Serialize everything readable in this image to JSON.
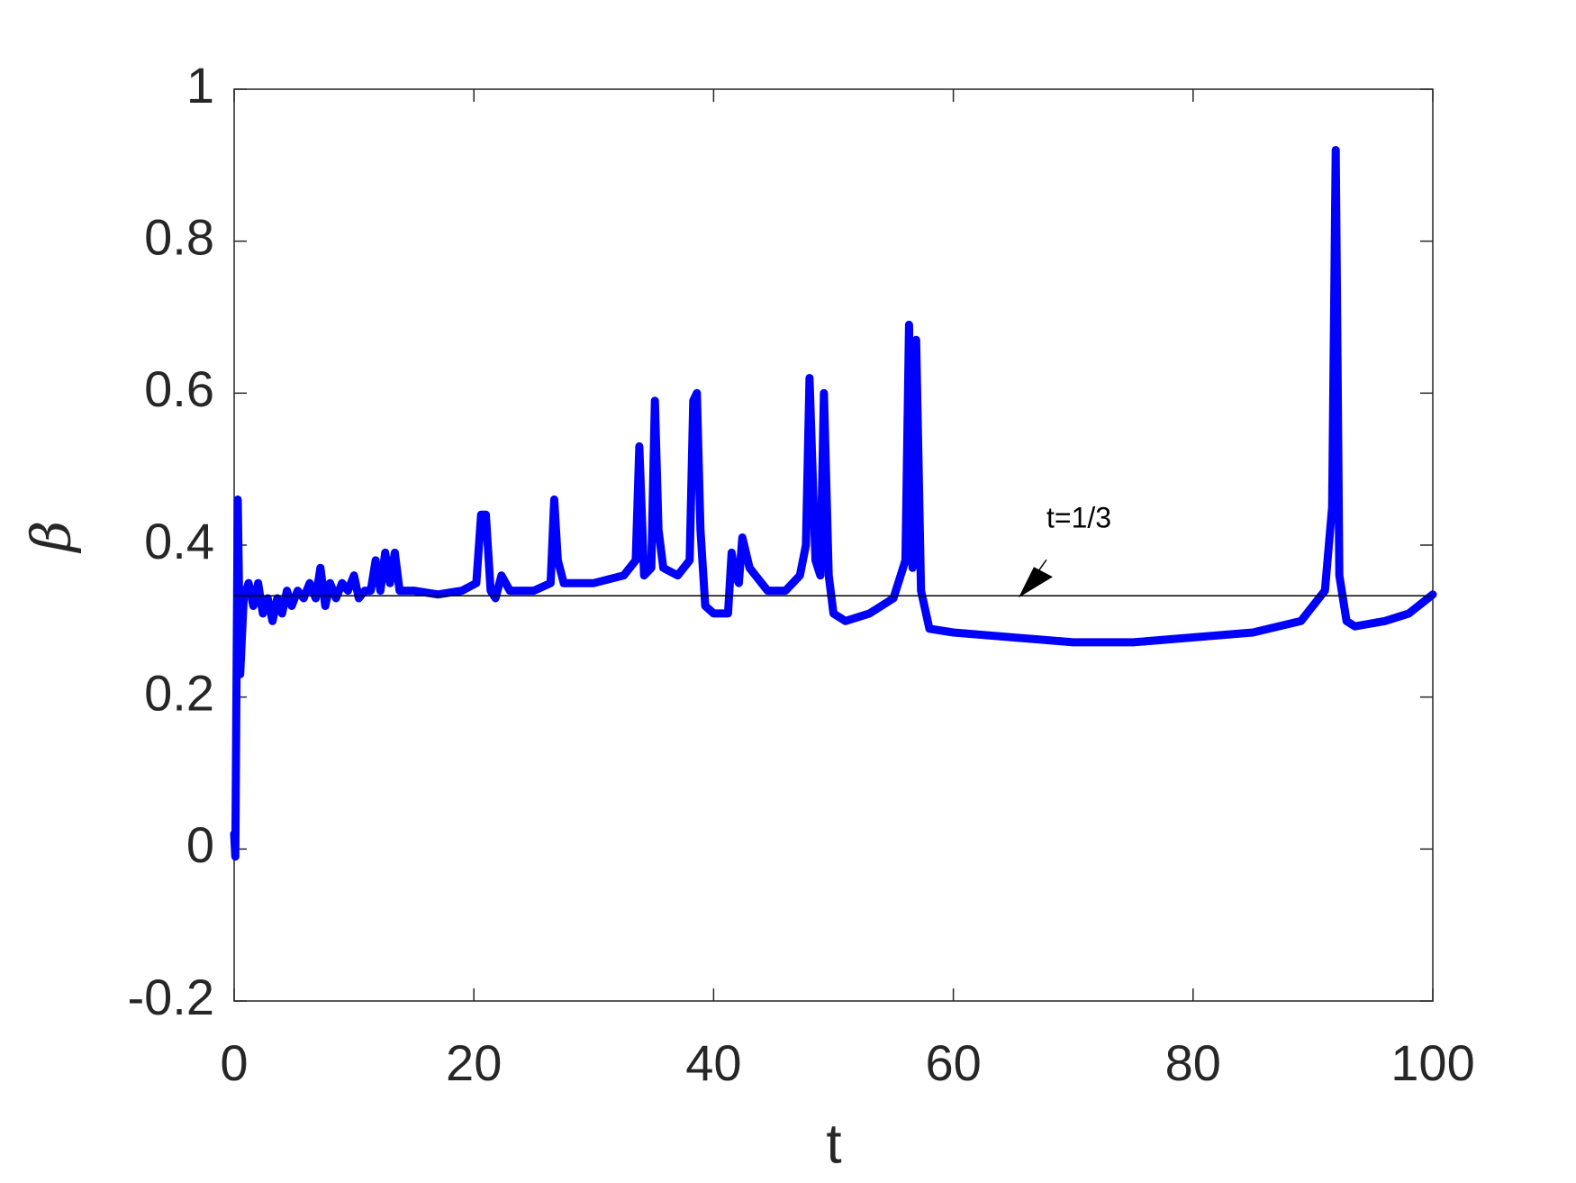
{
  "chart_data": {
    "type": "line",
    "xlabel": "t",
    "ylabel": "β",
    "annotation": "t=1/3",
    "hline": 0.3333,
    "color": "#0000ff",
    "x": [
      0,
      0.1,
      0.3,
      0.5,
      0.8,
      1.2,
      1.6,
      2,
      2.4,
      2.8,
      3.2,
      3.6,
      4,
      4.4,
      4.8,
      5.3,
      5.8,
      6.3,
      6.8,
      7.2,
      7.6,
      8,
      8.5,
      9,
      9.5,
      10,
      10.4,
      10.9,
      11.4,
      11.8,
      12.2,
      12.6,
      13,
      13.4,
      13.8,
      15,
      17,
      19,
      20.2,
      20.6,
      21,
      21.4,
      21.8,
      22.3,
      23,
      25,
      26.4,
      26.7,
      27,
      27.5,
      30,
      32.5,
      33.5,
      33.8,
      34.2,
      34.8,
      35.1,
      35.4,
      35.8,
      37,
      38,
      38.3,
      38.6,
      38.9,
      39.3,
      40,
      41.2,
      41.5,
      41.8,
      42.1,
      42.4,
      43,
      44.5,
      46,
      47.2,
      47.7,
      48,
      48.5,
      48.9,
      49.2,
      49.6,
      50,
      51,
      53,
      55,
      56,
      56.3,
      56.6,
      56.9,
      57.3,
      58,
      60,
      70,
      75,
      85,
      89,
      91,
      91.6,
      91.9,
      92.2,
      92.8,
      93.5,
      96,
      98,
      100
    ],
    "values": [
      0.02,
      -0.01,
      0.46,
      0.23,
      0.33,
      0.35,
      0.32,
      0.35,
      0.31,
      0.33,
      0.3,
      0.33,
      0.31,
      0.34,
      0.32,
      0.34,
      0.33,
      0.35,
      0.33,
      0.37,
      0.32,
      0.35,
      0.33,
      0.35,
      0.34,
      0.36,
      0.33,
      0.34,
      0.34,
      0.38,
      0.34,
      0.39,
      0.35,
      0.39,
      0.34,
      0.34,
      0.335,
      0.34,
      0.35,
      0.44,
      0.44,
      0.34,
      0.33,
      0.36,
      0.34,
      0.34,
      0.35,
      0.46,
      0.38,
      0.35,
      0.35,
      0.36,
      0.38,
      0.53,
      0.36,
      0.37,
      0.59,
      0.42,
      0.37,
      0.36,
      0.38,
      0.59,
      0.6,
      0.42,
      0.32,
      0.31,
      0.31,
      0.39,
      0.36,
      0.35,
      0.41,
      0.37,
      0.34,
      0.34,
      0.36,
      0.4,
      0.62,
      0.38,
      0.36,
      0.6,
      0.36,
      0.31,
      0.3,
      0.31,
      0.33,
      0.38,
      0.69,
      0.37,
      0.67,
      0.34,
      0.29,
      0.285,
      0.272,
      0.272,
      0.285,
      0.3,
      0.34,
      0.45,
      0.92,
      0.36,
      0.3,
      0.293,
      0.3,
      0.31,
      0.335
    ],
    "xlim": [
      0,
      100
    ],
    "xticks": [
      0,
      20,
      40,
      60,
      80,
      100
    ],
    "ylim": [
      -0.2,
      1
    ],
    "yticks": [
      -0.2,
      0,
      0.2,
      0.4,
      0.6,
      0.8,
      1
    ]
  }
}
